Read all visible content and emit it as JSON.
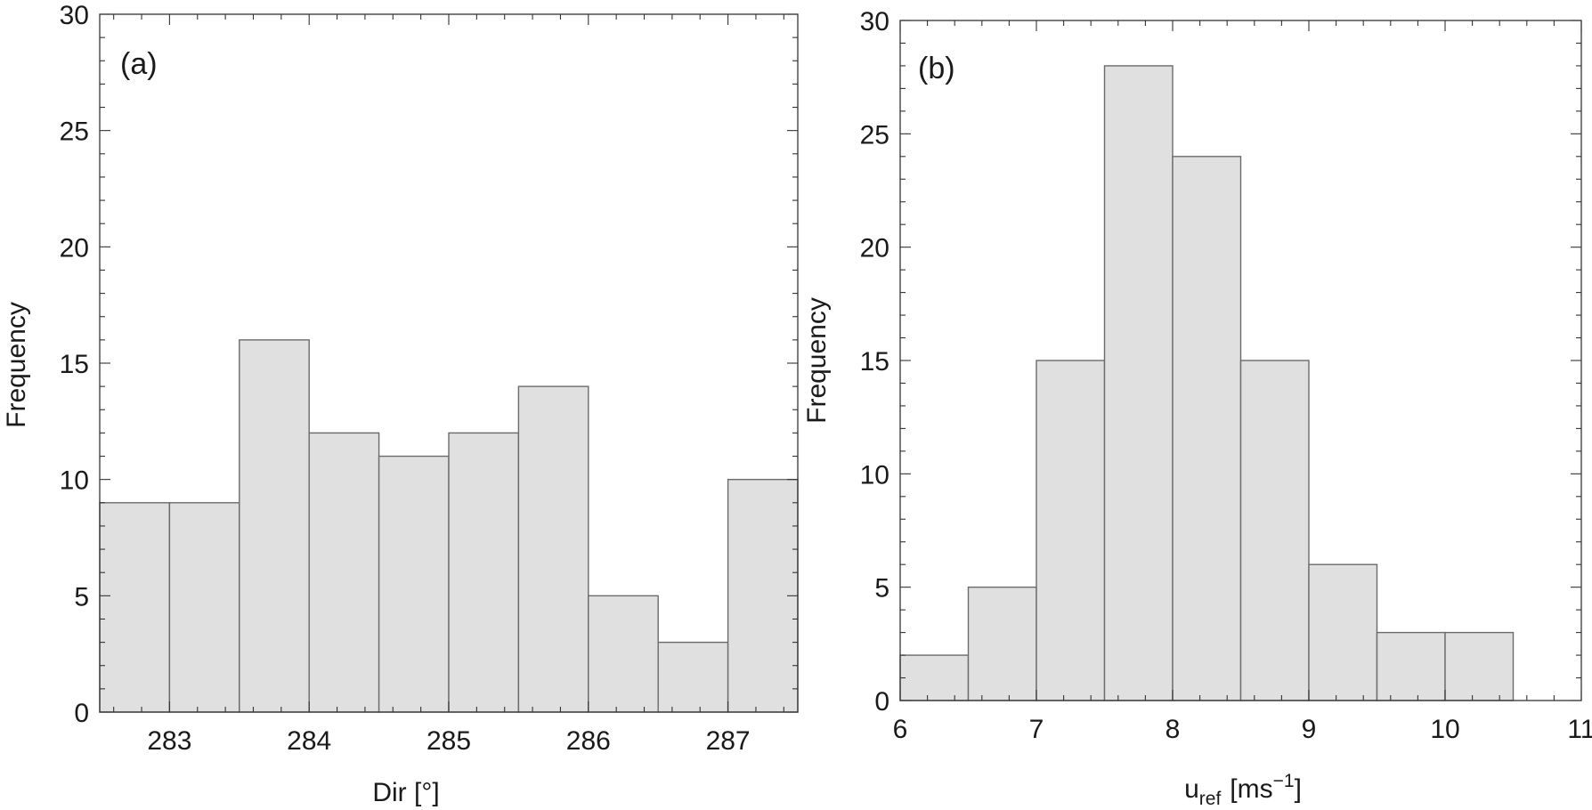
{
  "chart_data": [
    {
      "type": "bar",
      "panel_label": "(a)",
      "xlabel": "Dir [°]",
      "ylabel": "Frequency",
      "xlim": [
        282.5,
        287.5
      ],
      "ylim": [
        0,
        30
      ],
      "xticks": [
        283,
        284,
        285,
        286,
        287
      ],
      "yticks": [
        0,
        5,
        10,
        15,
        20,
        25,
        30
      ],
      "bin_edges": [
        282.5,
        283.0,
        283.5,
        284.0,
        284.5,
        285.0,
        285.5,
        286.0,
        286.5,
        287.0,
        287.5
      ],
      "values": [
        9,
        9,
        16,
        12,
        11,
        12,
        14,
        5,
        3,
        10
      ]
    },
    {
      "type": "bar",
      "panel_label": "(b)",
      "xlabel_main": "u",
      "xlabel_sub": "ref",
      "xlabel_unit": "[ms",
      "xlabel_sup": "−1",
      "xlabel_close": "]",
      "ylabel": "Frequency",
      "xlim": [
        6,
        11
      ],
      "ylim": [
        0,
        30
      ],
      "xticks": [
        6,
        7,
        8,
        9,
        10,
        11
      ],
      "yticks": [
        0,
        5,
        10,
        15,
        20,
        25,
        30
      ],
      "bin_edges": [
        6.0,
        6.5,
        7.0,
        7.5,
        8.0,
        8.5,
        9.0,
        9.5,
        10.0,
        10.5
      ],
      "values": [
        2,
        5,
        15,
        28,
        24,
        15,
        6,
        3,
        3
      ]
    }
  ]
}
